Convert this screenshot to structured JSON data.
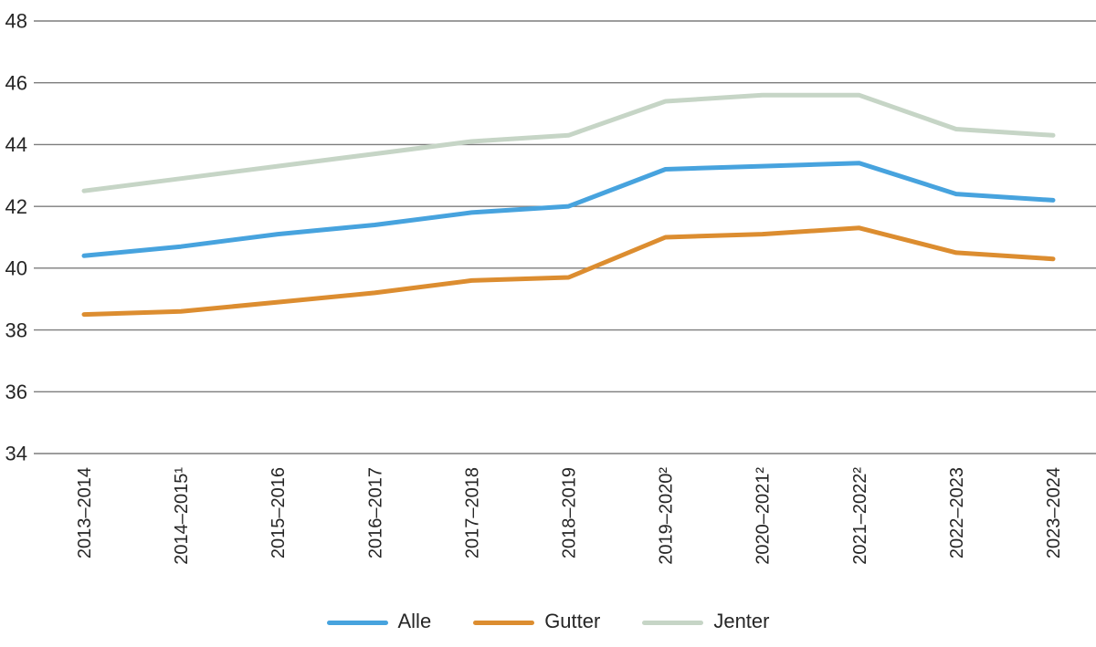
{
  "chart_data": {
    "type": "line",
    "title": "",
    "xlabel": "",
    "ylabel": "",
    "categories": [
      "2013–2014",
      "2014–2015¹",
      "2015–2016",
      "2016–2017",
      "2017–2018",
      "2018–2019",
      "2019–2020²",
      "2020–2021²",
      "2021–2022²",
      "2022–2023",
      "2023–2024"
    ],
    "series": [
      {
        "name": "Alle",
        "color": "#47A3DE",
        "values": [
          40.4,
          40.7,
          41.1,
          41.4,
          41.8,
          42.0,
          43.2,
          43.3,
          43.4,
          42.4,
          42.2
        ]
      },
      {
        "name": "Gutter",
        "color": "#DC8D30",
        "values": [
          38.5,
          38.6,
          38.9,
          39.2,
          39.6,
          39.7,
          41.0,
          41.1,
          41.3,
          40.5,
          40.3
        ]
      },
      {
        "name": "Jenter",
        "color": "#C6D5C6",
        "values": [
          42.5,
          42.9,
          43.3,
          43.7,
          44.1,
          44.3,
          45.4,
          45.6,
          45.6,
          44.5,
          44.3
        ]
      }
    ],
    "ylim": [
      34,
      48
    ],
    "yticks": [
      34,
      36,
      38,
      40,
      42,
      44,
      46,
      48
    ],
    "grid": true,
    "legend_position": "bottom"
  },
  "style": {
    "gridline_color": "#7d7d7d",
    "text_color": "#262626",
    "background": "#ffffff"
  }
}
